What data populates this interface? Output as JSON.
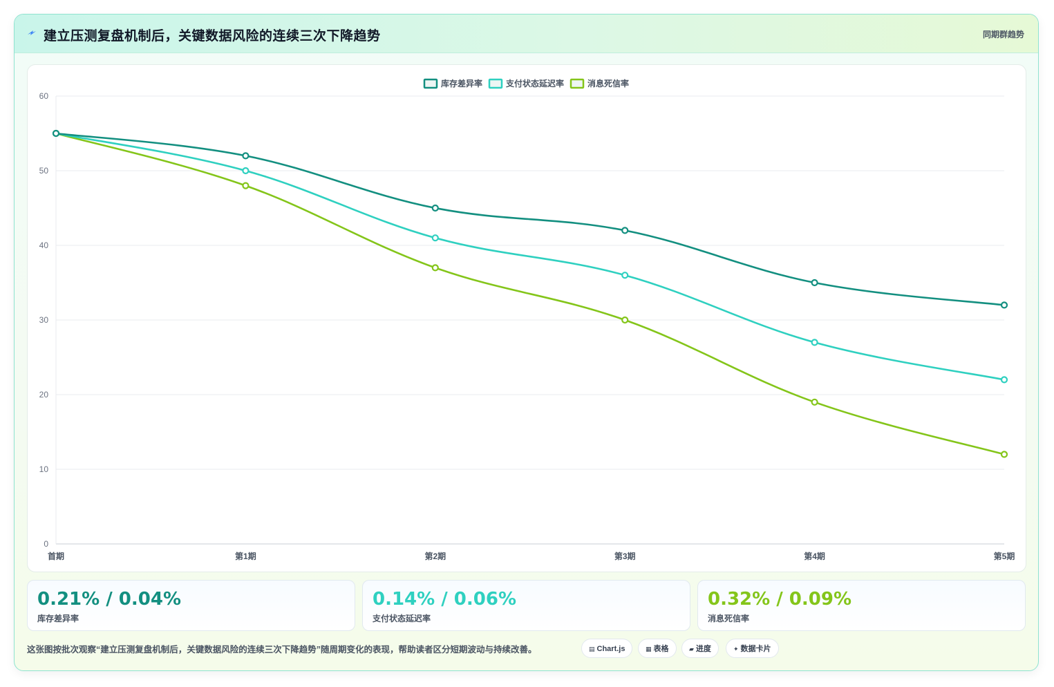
{
  "header": {
    "title": "建立压测复盘机制后，关键数据风险的连续三次下降趋势",
    "tag": "同期群趋势",
    "icon": "sparkle-icon"
  },
  "chart_data": {
    "type": "line",
    "title": "",
    "xlabel": "",
    "ylabel": "",
    "categories": [
      "首期",
      "第1期",
      "第2期",
      "第3期",
      "第4期",
      "第5期"
    ],
    "ylim": [
      0,
      60
    ],
    "yticks": [
      "0",
      "10",
      "20",
      "30",
      "40",
      "50",
      "60"
    ],
    "grid": true,
    "legend_position": "top-center",
    "series": [
      {
        "name": "库存差异率",
        "color": "#138f80",
        "values": [
          55,
          52,
          45,
          42,
          35,
          32
        ]
      },
      {
        "name": "支付状态延迟率",
        "color": "#2fd0c0",
        "values": [
          55,
          50,
          41,
          36,
          27,
          22
        ]
      },
      {
        "name": "消息死信率",
        "color": "#84c51a",
        "values": [
          55,
          48,
          37,
          30,
          19,
          12
        ]
      }
    ]
  },
  "kpis": [
    {
      "value": "0.21% / 0.04%",
      "label": "库存差异率",
      "color": "#138f80"
    },
    {
      "value": "0.14% / 0.06%",
      "label": "支付状态延迟率",
      "color": "#2fd0c0"
    },
    {
      "value": "0.32% / 0.09%",
      "label": "消息死信率",
      "color": "#84c51a"
    }
  ],
  "footnote": "这张图按批次观察“建立压测复盘机制后，关键数据风险的连续三次下降趋势”随周期变化的表现，帮助读者区分短期波动与持续改善。",
  "chips": [
    {
      "icon": "▤",
      "icon_name": "chart-icon",
      "label": "Chart.js"
    },
    {
      "icon": "▦",
      "icon_name": "table-icon",
      "label": "表格"
    },
    {
      "icon": "▰",
      "icon_name": "progress-icon",
      "label": "进度"
    },
    {
      "icon": "✦",
      "icon_name": "card-icon",
      "label": "数据卡片"
    }
  ]
}
